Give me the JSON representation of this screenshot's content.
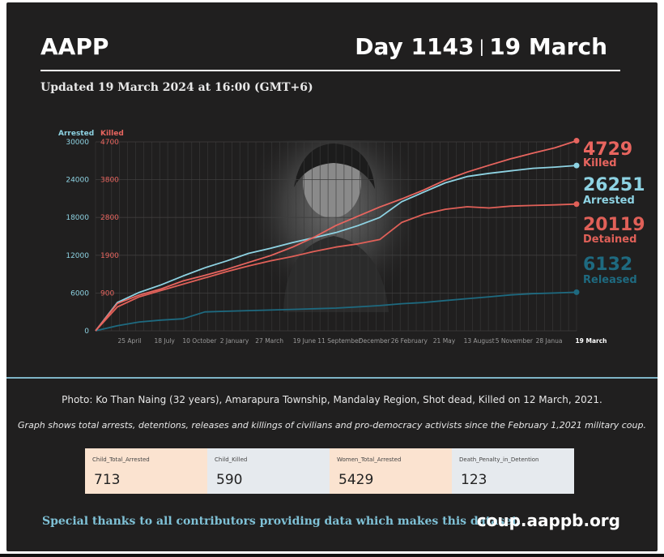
{
  "header": {
    "brand": "AAPP",
    "day": "Day 1143",
    "date": "19 March",
    "updated": "Updated 19 March 2024 at 16:00 (GMT+6)"
  },
  "colors": {
    "background": "#201f1f",
    "arrested": "#8ed3e3",
    "killed": "#e8655f",
    "detained": "#e06058",
    "released": "#1e6a80",
    "footer_accent": "#7fc1d6"
  },
  "chart_data": {
    "type": "line",
    "left_axis": {
      "label": "Arrested",
      "ticks": [
        0,
        6000,
        12000,
        18000,
        24000,
        30000
      ],
      "ylim": [
        0,
        30000
      ]
    },
    "right_axis": {
      "label": "Killed",
      "ticks": [
        0,
        900,
        1900,
        2800,
        3800,
        4700
      ],
      "ylim": [
        0,
        4700
      ]
    },
    "x_ticks": [
      "25 April",
      "18 July",
      "10 October",
      "2 January",
      "27 March",
      "19 June",
      "11 September",
      "December",
      "26 February",
      "21 May",
      "13 August",
      "5 November",
      "28 Janua",
      "19 March"
    ],
    "grid": true,
    "series": [
      {
        "name": "Killed",
        "axis": "right",
        "final_value": "4729",
        "color": "#e8655f",
        "values": [
          0,
          680,
          890,
          1040,
          1240,
          1380,
          1530,
          1700,
          1870,
          2080,
          2330,
          2620,
          2850,
          3080,
          3280,
          3500,
          3750,
          3950,
          4120,
          4280,
          4420,
          4550,
          4729
        ]
      },
      {
        "name": "Arrested",
        "axis": "left",
        "final_value": "26251",
        "color": "#8ed3e3",
        "values": [
          0,
          4500,
          6100,
          7300,
          8700,
          10000,
          11100,
          12300,
          13100,
          14000,
          14800,
          15600,
          16700,
          18000,
          20500,
          22000,
          23500,
          24500,
          25000,
          25400,
          25800,
          26000,
          26251
        ]
      },
      {
        "name": "Detained",
        "axis": "left",
        "final_value": "20119",
        "color": "#e06058",
        "values": [
          0,
          3800,
          5400,
          6400,
          7400,
          8400,
          9400,
          10300,
          11100,
          11800,
          12600,
          13300,
          13800,
          14500,
          17200,
          18500,
          19300,
          19700,
          19500,
          19800,
          19900,
          20000,
          20119
        ]
      },
      {
        "name": "Released",
        "axis": "left",
        "final_value": "6132",
        "color": "#1e6a80",
        "values": [
          0,
          800,
          1400,
          1700,
          1900,
          3000,
          3100,
          3200,
          3300,
          3400,
          3500,
          3600,
          3800,
          4000,
          4300,
          4500,
          4800,
          5100,
          5400,
          5700,
          5900,
          6000,
          6132
        ]
      }
    ]
  },
  "caption": {
    "photo": "Photo: Ko Than Naing (32 years), Amarapura Township, Mandalay Region, Shot dead, Killed on 12 March, 2021.",
    "note": "Graph shows total arrests, detentions, releases and killings of civilians and pro-democracy activists since the February 1,2021 military coup."
  },
  "stats": [
    {
      "label": "Child_Total_Arrested",
      "value": "713",
      "color": "#fbe3d0"
    },
    {
      "label": "Child_Killed",
      "value": "590",
      "color": "#e6eaee"
    },
    {
      "label": "Women_Total_Arrested",
      "value": "5429",
      "color": "#fbe3d0"
    },
    {
      "label": "Death_Penalty_in_Detention",
      "value": "123",
      "color": "#e6eaee"
    }
  ],
  "footer": {
    "thanks": "Special thanks to all contributors providing data which makes this dataset.",
    "site": "coup.aappb.org"
  }
}
